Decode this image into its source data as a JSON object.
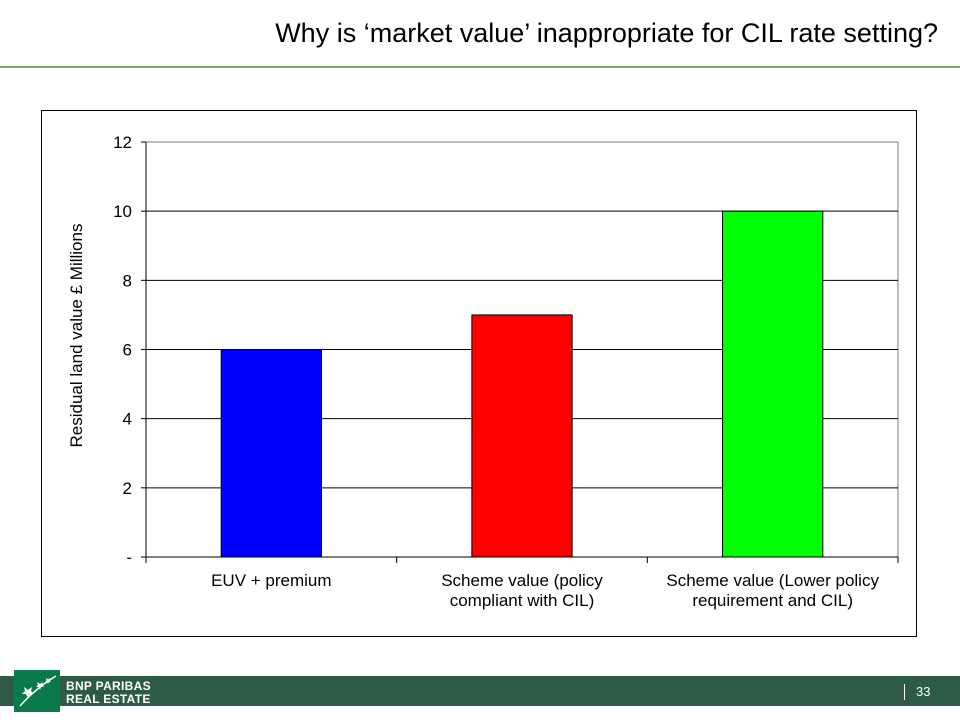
{
  "slide": {
    "title": "Why is ‘market value’ inappropriate for CIL rate setting?",
    "page_number": "33"
  },
  "footer": {
    "brand_line1": "BNP PARIBAS",
    "brand_line2": "REAL ESTATE",
    "bar_color": "#2e5b45"
  },
  "chart_data": {
    "type": "bar",
    "title": "",
    "xlabel": "",
    "ylabel": "Residual land value £ Millions",
    "ylim": [
      0,
      12
    ],
    "yticks": [
      0,
      2,
      4,
      6,
      8,
      10,
      12
    ],
    "ytick_labels": [
      "-",
      "2",
      "4",
      "6",
      "8",
      "10",
      "12"
    ],
    "grid": true,
    "legend": "none",
    "categories": [
      [
        "EUV + premium"
      ],
      [
        "Scheme value (policy",
        "compliant with CIL)"
      ],
      [
        "Scheme value (Lower policy",
        "requirement and CIL)"
      ]
    ],
    "values": [
      6,
      7,
      10
    ],
    "colors": [
      "#0000ff",
      "#ff0000",
      "#00ff00"
    ]
  }
}
